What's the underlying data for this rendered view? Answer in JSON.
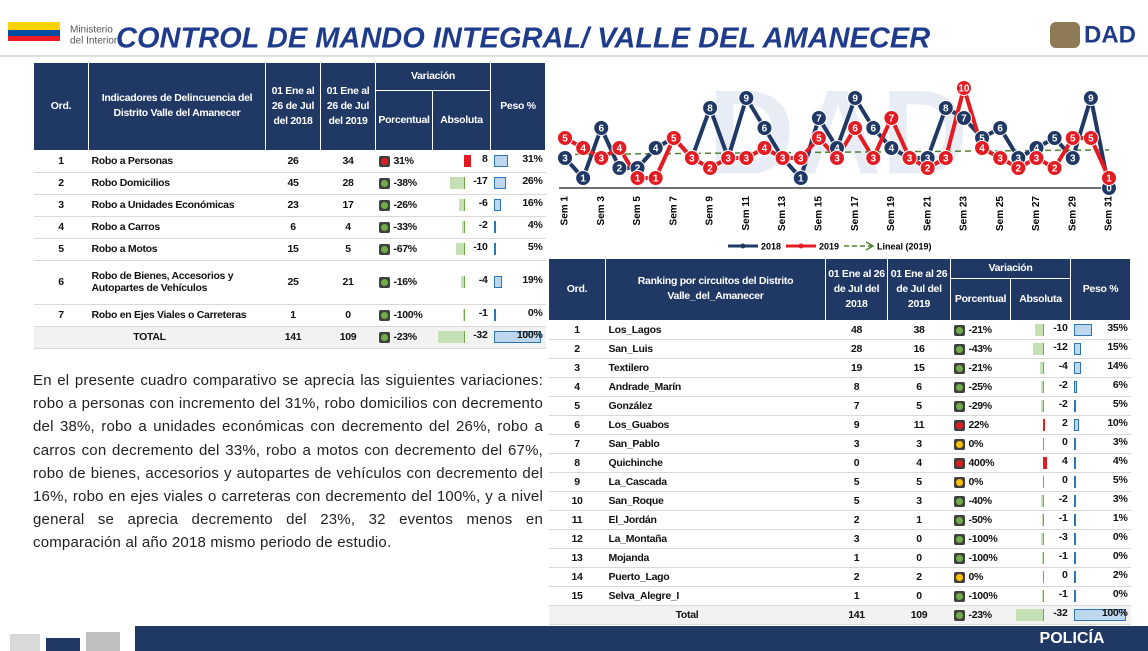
{
  "header": {
    "ministry_line1": "Ministerio",
    "ministry_line2": "del Interior",
    "title": "CONTROL DE MANDO INTEGRAL/ VALLE DEL AMANECER",
    "logo": "DAD"
  },
  "table1": {
    "columns": [
      "Ord.",
      "Indicadores de Delincuencia del Distrito Valle del Amanecer",
      "01 Ene al 26 de Jul del 2018",
      "01 Ene al 26 de Jul del 2019",
      "Porcentual",
      "Absoluta",
      "Peso %"
    ],
    "group_header": "Variación",
    "rows": [
      {
        "ord": 1,
        "name": "Robo a Personas",
        "y2018": 26,
        "y2019": 34,
        "pct": 31,
        "pct_label": "31%",
        "abs": 8,
        "peso": 31,
        "peso_label": "31%"
      },
      {
        "ord": 2,
        "name": "Robo Domicilios",
        "y2018": 45,
        "y2019": 28,
        "pct": -38,
        "pct_label": "-38%",
        "abs": -17,
        "peso": 26,
        "peso_label": "26%"
      },
      {
        "ord": 3,
        "name": "Robo a Unidades Económicas",
        "y2018": 23,
        "y2019": 17,
        "pct": -26,
        "pct_label": "-26%",
        "abs": -6,
        "peso": 16,
        "peso_label": "16%"
      },
      {
        "ord": 4,
        "name": "Robo a Carros",
        "y2018": 6,
        "y2019": 4,
        "pct": -33,
        "pct_label": "-33%",
        "abs": -2,
        "peso": 4,
        "peso_label": "4%"
      },
      {
        "ord": 5,
        "name": "Robo a Motos",
        "y2018": 15,
        "y2019": 5,
        "pct": -67,
        "pct_label": "-67%",
        "abs": -10,
        "peso": 5,
        "peso_label": "5%"
      },
      {
        "ord": 6,
        "name": "Robo de Bienes, Accesorios y Autopartes de Vehículos",
        "y2018": 25,
        "y2019": 21,
        "pct": -16,
        "pct_label": "-16%",
        "abs": -4,
        "peso": 19,
        "peso_label": "19%"
      },
      {
        "ord": 7,
        "name": "Robo en Ejes Viales o Carreteras",
        "y2018": 1,
        "y2019": 0,
        "pct": -100,
        "pct_label": "-100%",
        "abs": -1,
        "peso": 0,
        "peso_label": "0%"
      }
    ],
    "total": {
      "name": "TOTAL",
      "y2018": 141,
      "y2019": 109,
      "pct": -23,
      "pct_label": "-23%",
      "abs": -32,
      "peso": 100,
      "peso_label": "100%"
    }
  },
  "table2": {
    "columns": [
      "Ord.",
      "Ranking por circuitos del Distrito Valle_del_Amanecer",
      "01 Ene al 26 de Jul del 2018",
      "01 Ene al 26 de Jul del 2019",
      "Porcentual",
      "Absoluta",
      "Peso %"
    ],
    "group_header": "Variación",
    "rows": [
      {
        "ord": 1,
        "name": "Los_Lagos",
        "y2018": 48,
        "y2019": 38,
        "pct": -21,
        "pct_label": "-21%",
        "abs": -10,
        "peso": 35,
        "peso_label": "35%"
      },
      {
        "ord": 2,
        "name": "San_Luis",
        "y2018": 28,
        "y2019": 16,
        "pct": -43,
        "pct_label": "-43%",
        "abs": -12,
        "peso": 15,
        "peso_label": "15%"
      },
      {
        "ord": 3,
        "name": "Textilero",
        "y2018": 19,
        "y2019": 15,
        "pct": -21,
        "pct_label": "-21%",
        "abs": -4,
        "peso": 14,
        "peso_label": "14%"
      },
      {
        "ord": 4,
        "name": "Andrade_Marín",
        "y2018": 8,
        "y2019": 6,
        "pct": -25,
        "pct_label": "-25%",
        "abs": -2,
        "peso": 6,
        "peso_label": "6%"
      },
      {
        "ord": 5,
        "name": "González",
        "y2018": 7,
        "y2019": 5,
        "pct": -29,
        "pct_label": "-29%",
        "abs": -2,
        "peso": 5,
        "peso_label": "5%"
      },
      {
        "ord": 6,
        "name": "Los_Guabos",
        "y2018": 9,
        "y2019": 11,
        "pct": 22,
        "pct_label": "22%",
        "abs": 2,
        "peso": 10,
        "peso_label": "10%"
      },
      {
        "ord": 7,
        "name": "San_Pablo",
        "y2018": 3,
        "y2019": 3,
        "pct": 0,
        "pct_label": "0%",
        "abs": 0,
        "peso": 3,
        "peso_label": "3%"
      },
      {
        "ord": 8,
        "name": "Quichinche",
        "y2018": 0,
        "y2019": 4,
        "pct": 400,
        "pct_label": "400%",
        "abs": 4,
        "peso": 4,
        "peso_label": "4%"
      },
      {
        "ord": 9,
        "name": "La_Cascada",
        "y2018": 5,
        "y2019": 5,
        "pct": 0,
        "pct_label": "0%",
        "abs": 0,
        "peso": 5,
        "peso_label": "5%"
      },
      {
        "ord": 10,
        "name": "San_Roque",
        "y2018": 5,
        "y2019": 3,
        "pct": -40,
        "pct_label": "-40%",
        "abs": -2,
        "peso": 3,
        "peso_label": "3%"
      },
      {
        "ord": 11,
        "name": "El_Jordán",
        "y2018": 2,
        "y2019": 1,
        "pct": -50,
        "pct_label": "-50%",
        "abs": -1,
        "peso": 1,
        "peso_label": "1%"
      },
      {
        "ord": 12,
        "name": "La_Montaña",
        "y2018": 3,
        "y2019": 0,
        "pct": -100,
        "pct_label": "-100%",
        "abs": -3,
        "peso": 0,
        "peso_label": "0%"
      },
      {
        "ord": 13,
        "name": "Mojanda",
        "y2018": 1,
        "y2019": 0,
        "pct": -100,
        "pct_label": "-100%",
        "abs": -1,
        "peso": 0,
        "peso_label": "0%"
      },
      {
        "ord": 14,
        "name": "Puerto_Lago",
        "y2018": 2,
        "y2019": 2,
        "pct": 0,
        "pct_label": "0%",
        "abs": 0,
        "peso": 2,
        "peso_label": "2%"
      },
      {
        "ord": 15,
        "name": "Selva_Alegre_I",
        "y2018": 1,
        "y2019": 0,
        "pct": -100,
        "pct_label": "-100%",
        "abs": -1,
        "peso": 0,
        "peso_label": "0%"
      }
    ],
    "total": {
      "name": "Total",
      "y2018": 141,
      "y2019": 109,
      "pct": -23,
      "pct_label": "-23%",
      "abs": -32,
      "peso": 100,
      "peso_label": "100%"
    }
  },
  "paragraph": "En el presente cuadro comparativo se aprecia las siguientes variaciones: robo a personas con incremento del 31%, robo domicilios con decremento del 38%, robo a unidades económicas con decremento del 26%, robo a carros con decremento del 33%, robo a motos con decremento del 67%, robo de bienes, accesorios y autopartes de vehículos con decremento del 16%, robo en ejes viales o carreteras con decremento del 100%, y a nivel general se aprecia decremento del 23%, 32 eventos menos  en comparación al año 2018 mismo periodo de estudio.",
  "chart_data": {
    "type": "line",
    "categories": [
      "Sem 1",
      null,
      "Sem 3",
      null,
      "Sem 5",
      null,
      "Sem 7",
      null,
      "Sem 9",
      null,
      "Sem 11",
      null,
      "Sem 13",
      null,
      "Sem 15",
      null,
      "Sem 17",
      null,
      "Sem 19",
      null,
      "Sem 21",
      null,
      "Sem 23",
      null,
      "Sem 25",
      null,
      "Sem 27",
      null,
      "Sem 29",
      null,
      "Sem 31"
    ],
    "series": [
      {
        "name": "2018",
        "color": "#1f3864",
        "values": [
          3,
          1,
          6,
          2,
          2,
          4,
          5,
          3,
          8,
          3,
          9,
          6,
          3,
          1,
          7,
          4,
          9,
          6,
          4,
          3,
          3,
          8,
          7,
          5,
          6,
          3,
          4,
          5,
          3,
          9,
          0
        ]
      },
      {
        "name": "2019",
        "color": "#e31b23",
        "values": [
          5,
          4,
          3,
          4,
          1,
          1,
          5,
          3,
          2,
          3,
          3,
          4,
          3,
          3,
          5,
          3,
          6,
          3,
          7,
          3,
          2,
          3,
          10,
          4,
          3,
          2,
          3,
          2,
          5,
          5,
          1
        ]
      }
    ],
    "trendline": {
      "name": "Lineal (2019)",
      "color": "#548235"
    },
    "ylim": [
      0,
      10
    ]
  },
  "footer": {
    "brand": "POLICÍA"
  }
}
